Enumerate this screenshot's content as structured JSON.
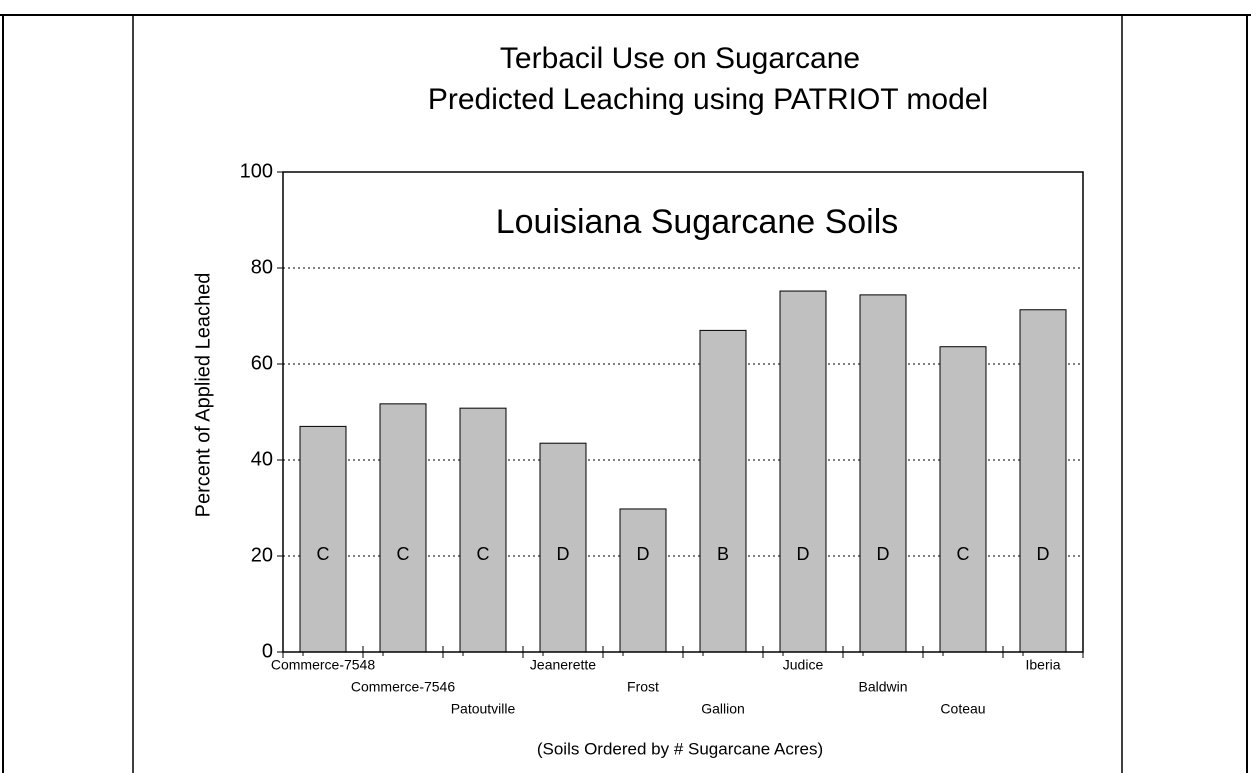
{
  "chart_data": {
    "type": "bar",
    "title": "Terbacil Use on Sugarcane",
    "subtitle": "Predicted Leaching using PATRIOT model",
    "annotation": "Louisiana Sugarcane Soils",
    "y_label": "Percent of Applied Leached",
    "x_label": "(Soils Ordered by # Sugarcane Acres)",
    "categories": [
      "Commerce-7548",
      "Commerce-7546",
      "Patoutville",
      "Jeanerette",
      "Frost",
      "Gallion",
      "Judice",
      "Baldwin",
      "Coteau",
      "Iberia"
    ],
    "values": [
      47,
      51.7,
      50.8,
      43.5,
      29.8,
      67,
      75.2,
      74.4,
      63.6,
      71.3
    ],
    "bar_labels": [
      "C",
      "C",
      "C",
      "D",
      "D",
      "B",
      "D",
      "D",
      "C",
      "D"
    ],
    "color": "#c0c0c0",
    "ylim": [
      0,
      100
    ],
    "yticks": [
      0,
      20,
      40,
      60,
      80,
      100
    ],
    "grid": true
  }
}
